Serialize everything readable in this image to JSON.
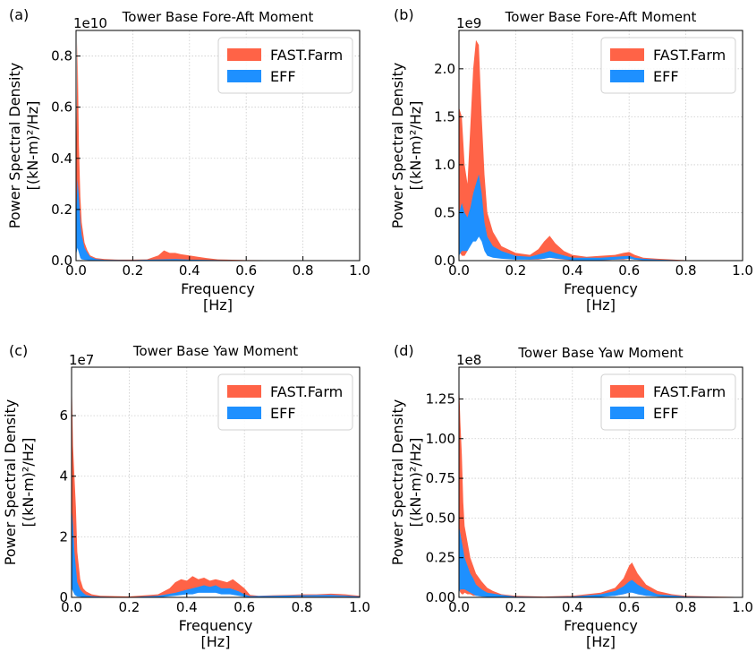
{
  "chart_data": [
    {
      "type": "area",
      "panel_label": "(a)",
      "title": "Tower Base Fore-Aft Moment",
      "xlabel": [
        "Frequency",
        "[Hz]"
      ],
      "ylabel": [
        "Power Spectral Density",
        "[(kN-m)²/Hz]"
      ],
      "offset_text": "1e10",
      "xlim": [
        0,
        1.0
      ],
      "ylim": [
        0,
        0.9
      ],
      "xticks": [
        "0.0",
        "0.2",
        "0.4",
        "0.6",
        "0.8",
        "1.0"
      ],
      "yticks": [
        "0.0",
        "0.2",
        "0.4",
        "0.6",
        "0.8"
      ],
      "grid": true,
      "legend": {
        "position": "top-right",
        "entries": [
          "FAST.Farm",
          "EFF"
        ]
      },
      "series": [
        {
          "name": "FAST.Farm",
          "color": "#ff6347",
          "x": [
            0.0,
            0.005,
            0.01,
            0.015,
            0.02,
            0.03,
            0.04,
            0.05,
            0.07,
            0.1,
            0.15,
            0.2,
            0.25,
            0.29,
            0.31,
            0.33,
            0.35,
            0.37,
            0.4,
            0.43,
            0.46,
            0.5,
            0.6,
            0.8,
            1.0
          ],
          "low": [
            0.02,
            0.1,
            0.05,
            0.02,
            0.01,
            0.005,
            0.003,
            0.002,
            0.001,
            0.0,
            0.0,
            0.0,
            0.0,
            0.0,
            0.0,
            0.0,
            0.0,
            0.0,
            0.0,
            0.0,
            0.0,
            0.0,
            0.0,
            0.0,
            0.0
          ],
          "high": [
            0.3,
            0.86,
            0.45,
            0.25,
            0.15,
            0.07,
            0.04,
            0.02,
            0.01,
            0.006,
            0.004,
            0.004,
            0.005,
            0.02,
            0.04,
            0.03,
            0.03,
            0.025,
            0.02,
            0.015,
            0.01,
            0.005,
            0.002,
            0.001,
            0.001
          ]
        },
        {
          "name": "EFF",
          "color": "#1e90ff",
          "x": [
            0.0,
            0.005,
            0.01,
            0.015,
            0.02,
            0.03,
            0.04,
            0.05,
            0.07,
            0.1,
            0.2,
            0.3,
            0.35,
            0.4,
            0.6,
            1.0
          ],
          "low": [
            0.02,
            0.05,
            0.03,
            0.01,
            0.005,
            0.003,
            0.002,
            0.001,
            0.0,
            0.0,
            0.0,
            0.0,
            0.0,
            0.0,
            0.0,
            0.0
          ],
          "high": [
            0.15,
            0.32,
            0.25,
            0.15,
            0.1,
            0.05,
            0.03,
            0.015,
            0.006,
            0.003,
            0.002,
            0.005,
            0.006,
            0.004,
            0.001,
            0.001
          ]
        }
      ]
    },
    {
      "type": "area",
      "panel_label": "(b)",
      "title": "Tower Base Fore-Aft Moment",
      "xlabel": [
        "Frequency",
        "[Hz]"
      ],
      "ylabel": [
        "Power Spectral Density",
        "[(kN-m)²/Hz]"
      ],
      "offset_text": "1e9",
      "xlim": [
        0,
        1.0
      ],
      "ylim": [
        0,
        2.4
      ],
      "xticks": [
        "0.0",
        "0.2",
        "0.4",
        "0.6",
        "0.8",
        "1.0"
      ],
      "yticks": [
        "0.0",
        "0.5",
        "1.0",
        "1.5",
        "2.0"
      ],
      "grid": true,
      "legend": {
        "position": "top-right",
        "entries": [
          "FAST.Farm",
          "EFF"
        ]
      },
      "series": [
        {
          "name": "FAST.Farm",
          "color": "#ff6347",
          "x": [
            0.0,
            0.01,
            0.02,
            0.03,
            0.04,
            0.05,
            0.06,
            0.07,
            0.08,
            0.09,
            0.1,
            0.12,
            0.15,
            0.2,
            0.25,
            0.28,
            0.3,
            0.32,
            0.34,
            0.37,
            0.4,
            0.45,
            0.5,
            0.55,
            0.58,
            0.6,
            0.62,
            0.65,
            0.7,
            0.8,
            1.0
          ],
          "low": [
            0.1,
            0.05,
            0.05,
            0.1,
            0.2,
            0.3,
            0.35,
            0.4,
            0.3,
            0.2,
            0.1,
            0.06,
            0.04,
            0.02,
            0.01,
            0.01,
            0.02,
            0.03,
            0.02,
            0.01,
            0.005,
            0.005,
            0.005,
            0.01,
            0.01,
            0.02,
            0.01,
            0.005,
            0.003,
            0.001,
            0.001
          ],
          "high": [
            1.6,
            1.5,
            1.0,
            0.8,
            1.4,
            2.0,
            2.3,
            2.25,
            1.5,
            0.9,
            0.5,
            0.3,
            0.15,
            0.08,
            0.06,
            0.12,
            0.2,
            0.26,
            0.18,
            0.1,
            0.06,
            0.04,
            0.05,
            0.06,
            0.08,
            0.09,
            0.06,
            0.03,
            0.02,
            0.005,
            0.002
          ]
        },
        {
          "name": "EFF",
          "color": "#1e90ff",
          "x": [
            0.0,
            0.01,
            0.02,
            0.03,
            0.04,
            0.05,
            0.06,
            0.07,
            0.08,
            0.09,
            0.1,
            0.12,
            0.15,
            0.2,
            0.25,
            0.3,
            0.32,
            0.35,
            0.4,
            0.5,
            0.55,
            0.6,
            0.62,
            0.65,
            0.7,
            0.8,
            1.0
          ],
          "low": [
            0.05,
            0.1,
            0.1,
            0.1,
            0.15,
            0.2,
            0.2,
            0.25,
            0.2,
            0.1,
            0.05,
            0.03,
            0.02,
            0.01,
            0.01,
            0.02,
            0.03,
            0.02,
            0.005,
            0.005,
            0.01,
            0.02,
            0.01,
            0.005,
            0.003,
            0.001,
            0.001
          ],
          "high": [
            0.5,
            0.6,
            0.5,
            0.45,
            0.55,
            0.7,
            0.8,
            0.9,
            0.7,
            0.4,
            0.25,
            0.15,
            0.1,
            0.05,
            0.04,
            0.08,
            0.1,
            0.07,
            0.03,
            0.03,
            0.04,
            0.05,
            0.03,
            0.02,
            0.01,
            0.003,
            0.001
          ]
        }
      ]
    },
    {
      "type": "area",
      "panel_label": "(c)",
      "title": "Tower Base Yaw Moment",
      "xlabel": [
        "Frequency",
        "[Hz]"
      ],
      "ylabel": [
        "Power Spectral Density",
        "[(kN-m)²/Hz]"
      ],
      "offset_text": "1e7",
      "xlim": [
        0,
        1.0
      ],
      "ylim": [
        0,
        7.6
      ],
      "xticks": [
        "0.0",
        "0.2",
        "0.4",
        "0.6",
        "0.8",
        "1.0"
      ],
      "yticks": [
        "0",
        "2",
        "4",
        "6"
      ],
      "grid": true,
      "legend": {
        "position": "top-right",
        "entries": [
          "FAST.Farm",
          "EFF"
        ]
      },
      "series": [
        {
          "name": "FAST.Farm",
          "color": "#ff6347",
          "x": [
            0.0,
            0.005,
            0.01,
            0.015,
            0.02,
            0.03,
            0.04,
            0.05,
            0.07,
            0.1,
            0.2,
            0.3,
            0.34,
            0.36,
            0.38,
            0.4,
            0.42,
            0.44,
            0.46,
            0.48,
            0.5,
            0.52,
            0.54,
            0.56,
            0.58,
            0.6,
            0.62,
            0.65,
            0.7,
            0.75,
            0.8,
            0.85,
            0.9,
            0.95,
            1.0
          ],
          "low": [
            0.5,
            0.3,
            0.2,
            0.1,
            0.05,
            0.03,
            0.02,
            0.01,
            0.0,
            0.0,
            0.0,
            0.0,
            0.05,
            0.1,
            0.15,
            0.2,
            0.2,
            0.2,
            0.2,
            0.2,
            0.2,
            0.15,
            0.15,
            0.1,
            0.1,
            0.05,
            0.02,
            0.01,
            0.01,
            0.02,
            0.02,
            0.02,
            0.02,
            0.02,
            0.01
          ],
          "high": [
            7.4,
            5.0,
            4.0,
            3.0,
            1.5,
            0.6,
            0.3,
            0.2,
            0.1,
            0.05,
            0.03,
            0.1,
            0.3,
            0.5,
            0.6,
            0.55,
            0.7,
            0.6,
            0.65,
            0.55,
            0.6,
            0.55,
            0.5,
            0.6,
            0.45,
            0.3,
            0.08,
            0.05,
            0.07,
            0.08,
            0.1,
            0.1,
            0.12,
            0.1,
            0.05
          ]
        },
        {
          "name": "EFF",
          "color": "#1e90ff",
          "x": [
            0.0,
            0.005,
            0.01,
            0.015,
            0.02,
            0.03,
            0.04,
            0.05,
            0.07,
            0.1,
            0.2,
            0.3,
            0.36,
            0.4,
            0.42,
            0.44,
            0.46,
            0.48,
            0.5,
            0.52,
            0.55,
            0.58,
            0.6,
            0.62,
            0.7,
            0.8,
            0.9,
            0.95,
            1.0
          ],
          "low": [
            0.3,
            0.2,
            0.1,
            0.05,
            0.03,
            0.02,
            0.01,
            0.0,
            0.0,
            0.0,
            0.0,
            0.0,
            0.05,
            0.1,
            0.1,
            0.15,
            0.15,
            0.15,
            0.15,
            0.1,
            0.1,
            0.05,
            0.02,
            0.01,
            0.01,
            0.02,
            0.02,
            0.02,
            0.01
          ],
          "high": [
            3.0,
            2.4,
            1.5,
            1.0,
            0.5,
            0.25,
            0.15,
            0.08,
            0.04,
            0.02,
            0.01,
            0.05,
            0.15,
            0.25,
            0.3,
            0.35,
            0.4,
            0.35,
            0.4,
            0.3,
            0.3,
            0.2,
            0.1,
            0.04,
            0.05,
            0.07,
            0.08,
            0.06,
            0.03
          ]
        }
      ]
    },
    {
      "type": "area",
      "panel_label": "(d)",
      "title": "Tower Base Yaw Moment",
      "xlabel": [
        "Frequency",
        "[Hz]"
      ],
      "ylabel": [
        "Power Spectral Density",
        "[(kN-m)²/Hz]"
      ],
      "offset_text": "1e8",
      "xlim": [
        0,
        1.0
      ],
      "ylim": [
        0,
        1.45
      ],
      "xticks": [
        "0.0",
        "0.2",
        "0.4",
        "0.6",
        "0.8",
        "1.0"
      ],
      "yticks": [
        "0.00",
        "0.25",
        "0.50",
        "0.75",
        "1.00",
        "1.25"
      ],
      "grid": true,
      "legend": {
        "position": "top-right",
        "entries": [
          "FAST.Farm",
          "EFF"
        ]
      },
      "series": [
        {
          "name": "FAST.Farm",
          "color": "#ff6347",
          "x": [
            0.0,
            0.005,
            0.01,
            0.015,
            0.02,
            0.03,
            0.04,
            0.05,
            0.06,
            0.08,
            0.1,
            0.12,
            0.15,
            0.2,
            0.3,
            0.4,
            0.5,
            0.55,
            0.58,
            0.6,
            0.61,
            0.63,
            0.66,
            0.7,
            0.75,
            0.8,
            0.9,
            1.0
          ],
          "low": [
            0.05,
            0.03,
            0.02,
            0.02,
            0.03,
            0.02,
            0.02,
            0.01,
            0.01,
            0.005,
            0.005,
            0.0,
            0.0,
            0.0,
            0.0,
            0.0,
            0.005,
            0.01,
            0.02,
            0.03,
            0.04,
            0.02,
            0.01,
            0.005,
            0.0,
            0.0,
            0.0,
            0.0
          ],
          "high": [
            1.37,
            1.1,
            0.9,
            0.6,
            0.45,
            0.35,
            0.25,
            0.2,
            0.15,
            0.1,
            0.06,
            0.04,
            0.02,
            0.01,
            0.005,
            0.01,
            0.03,
            0.06,
            0.12,
            0.2,
            0.22,
            0.15,
            0.08,
            0.04,
            0.02,
            0.01,
            0.005,
            0.002
          ]
        },
        {
          "name": "EFF",
          "color": "#1e90ff",
          "x": [
            0.0,
            0.005,
            0.01,
            0.015,
            0.02,
            0.03,
            0.04,
            0.05,
            0.06,
            0.08,
            0.1,
            0.15,
            0.2,
            0.3,
            0.4,
            0.5,
            0.55,
            0.58,
            0.6,
            0.61,
            0.63,
            0.66,
            0.7,
            0.8,
            1.0
          ],
          "low": [
            0.03,
            0.05,
            0.05,
            0.05,
            0.05,
            0.04,
            0.03,
            0.02,
            0.01,
            0.005,
            0.003,
            0.0,
            0.0,
            0.0,
            0.0,
            0.003,
            0.01,
            0.02,
            0.03,
            0.03,
            0.02,
            0.01,
            0.005,
            0.0,
            0.0
          ],
          "high": [
            0.45,
            0.4,
            0.35,
            0.3,
            0.25,
            0.2,
            0.15,
            0.12,
            0.08,
            0.05,
            0.03,
            0.015,
            0.005,
            0.003,
            0.005,
            0.02,
            0.04,
            0.07,
            0.1,
            0.11,
            0.08,
            0.05,
            0.02,
            0.005,
            0.001
          ]
        }
      ]
    }
  ]
}
